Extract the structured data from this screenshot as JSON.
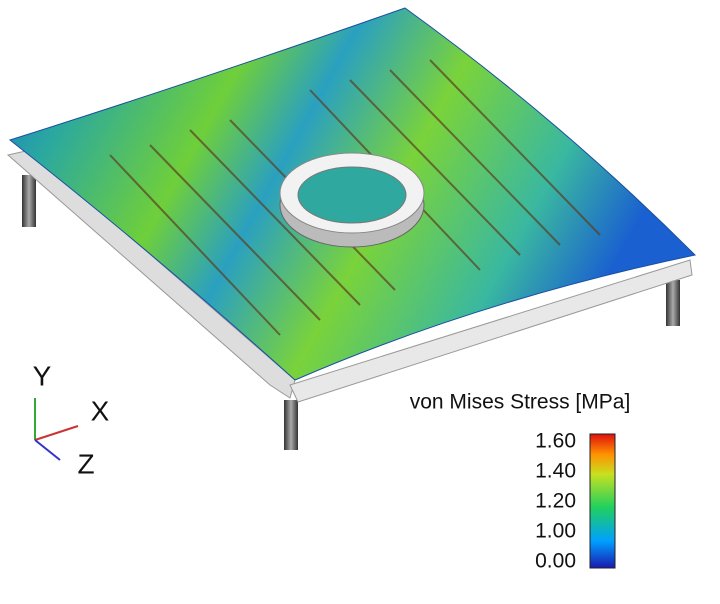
{
  "legend": {
    "title": "von Mises Stress [MPa]",
    "ticks": [
      "1.60",
      "1.40",
      "1.20",
      "1.00",
      "0.00"
    ]
  },
  "triad": {
    "y": "Y",
    "x": "X",
    "z": "Z"
  }
}
